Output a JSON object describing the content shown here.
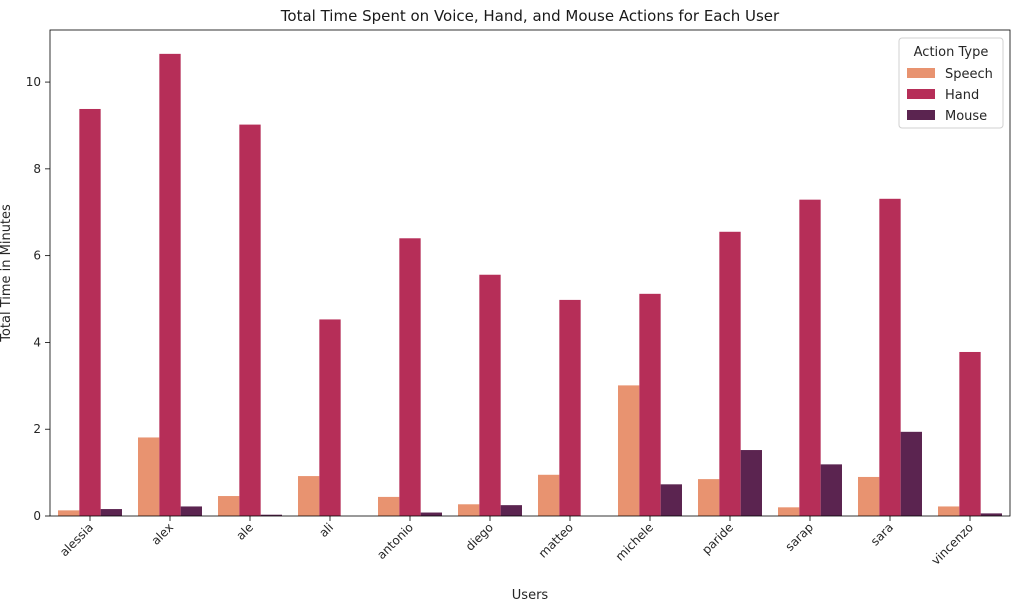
{
  "chart_data": {
    "type": "bar",
    "title": "Total Time Spent on Voice, Hand, and Mouse Actions for Each User",
    "xlabel": "Users",
    "ylabel": "Total Time in Minutes",
    "ylim": [
      0,
      11.2
    ],
    "yticks": [
      0,
      2,
      4,
      6,
      8,
      10
    ],
    "categories": [
      "alessia",
      "alex",
      "ale",
      "ali",
      "antonio",
      "diego",
      "matteo",
      "michele",
      "paride",
      "sarap",
      "sara",
      "vincenzo"
    ],
    "series": [
      {
        "name": "Speech",
        "color": "#e89370",
        "values": [
          0.13,
          1.81,
          0.46,
          0.92,
          0.44,
          0.27,
          0.95,
          3.01,
          0.85,
          0.2,
          0.9,
          0.22
        ]
      },
      {
        "name": "Hand",
        "color": "#b62e58",
        "values": [
          9.38,
          10.65,
          9.02,
          4.53,
          6.4,
          5.56,
          4.98,
          5.12,
          6.55,
          7.29,
          7.31,
          3.78
        ]
      },
      {
        "name": "Mouse",
        "color": "#5b2450",
        "values": [
          0.16,
          0.22,
          0.03,
          0.0,
          0.08,
          0.25,
          0.0,
          0.73,
          1.52,
          1.19,
          1.94,
          0.06
        ]
      }
    ],
    "legend": {
      "title": "Action Type",
      "placement": "top-right"
    },
    "grid": false
  }
}
